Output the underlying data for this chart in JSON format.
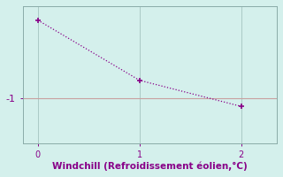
{
  "x": [
    0,
    1,
    2
  ],
  "y": [
    -0.22,
    -0.82,
    -1.08
  ],
  "line_color": "#880088",
  "marker_color": "#880088",
  "bg_color": "#d4f0ec",
  "grid_color": "#9bbcb8",
  "axis_color": "#8aaba8",
  "tick_color": "#880088",
  "label_color": "#880088",
  "xlabel": "Windchill (Refroidissement éolien,°C)",
  "xlabel_fontsize": 7.5,
  "ytick_labels": [
    "-1"
  ],
  "ytick_values": [
    -1
  ],
  "xtick_values": [
    0,
    1,
    2
  ],
  "xlim": [
    -0.15,
    2.35
  ],
  "ylim": [
    -1.45,
    -0.08
  ],
  "hline_y": -1,
  "hline_color": "#c8a0a0",
  "line_width": 1.0,
  "marker_size": 3,
  "figsize": [
    3.2,
    2.0
  ],
  "dpi": 100
}
